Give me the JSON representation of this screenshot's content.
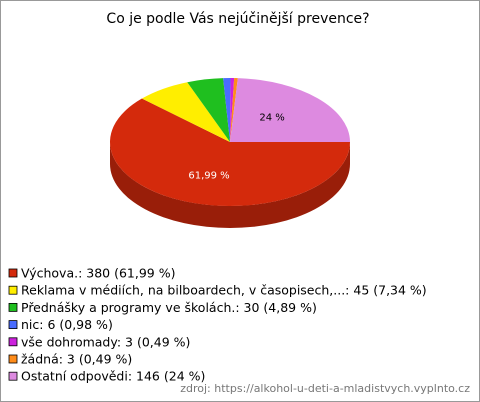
{
  "chart_data": {
    "type": "pie",
    "title": "Co je podle Vás nejúčinější prevence?",
    "categories": [
      "Výchova.",
      "Reklama v médiích, na bilboardech, v časopisech,...",
      "Přednášky a programy ve školách.",
      "nic",
      "vše dohromady",
      "žádná",
      "Ostatní odpovědi"
    ],
    "values": [
      61.99,
      7.34,
      4.89,
      0.98,
      0.49,
      0.49,
      24
    ],
    "value_labels": [
      "61,99 %",
      null,
      null,
      null,
      null,
      null,
      "24 %"
    ],
    "legend_labels": [
      "Výchova.: 380 (61,99 %)",
      "Reklama v médiích, na bilboardech, v časopisech,...: 45 (7,34 %)",
      "Přednášky a programy ve školách.: 30 (4,89 %)",
      "nic: 6 (0,98 %)",
      "vše dohromady: 3 (0,49 %)",
      "žádná: 3 (0,49 %)",
      "Ostatní odpovědi: 146 (24 %)"
    ],
    "colors": [
      "#d42a0c",
      "#ffee00",
      "#1fbf1f",
      "#4a6cff",
      "#cc22dd",
      "#ff8c1a",
      "#dd8ae0"
    ],
    "source": "zdroj: https://alkohol-u-deti-a-mladistvych.vyplnto.cz"
  }
}
